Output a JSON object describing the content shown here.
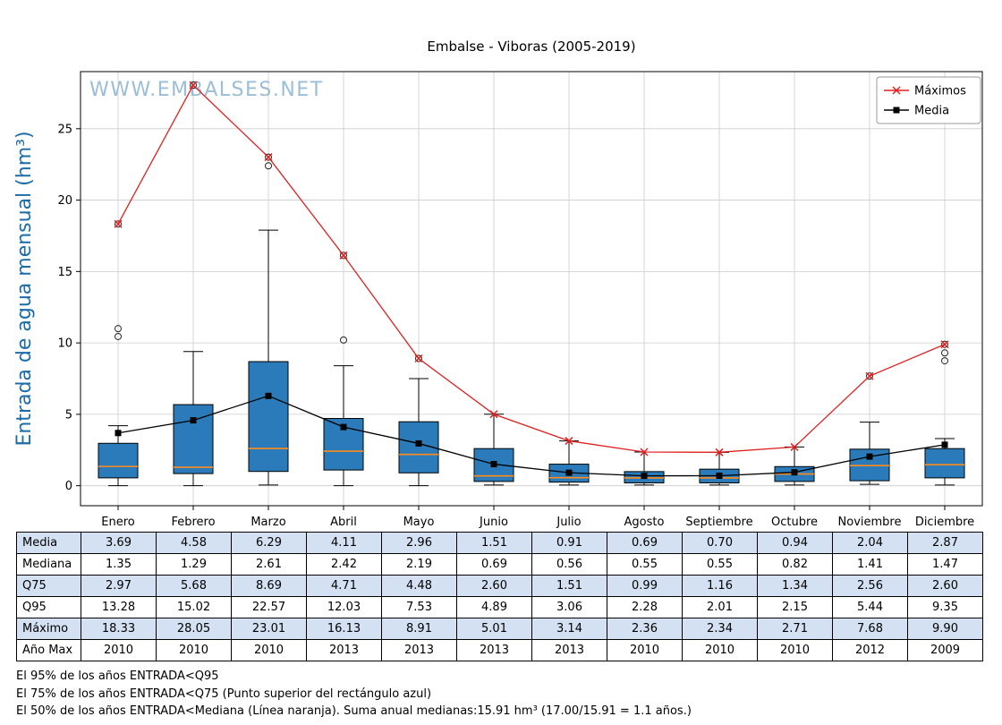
{
  "title": "Embalse - Viboras (2005-2019)",
  "watermark": "WWW.EMBALSES.NET",
  "colors": {
    "box_fill": "#2b7bba",
    "median": "#ff8c1a",
    "max_line": "#e02020",
    "media_line": "#000000",
    "ylabel": "#1b6ca8",
    "watermark": "#93b8d4",
    "grid": "#cccccc",
    "table_stripe": "#d3e1f3"
  },
  "chart_data": {
    "type": "boxplot",
    "title": "Embalse - Viboras (2005-2019)",
    "ylabel": "Entrada de agua mensual (hm³)",
    "categories": [
      "Enero",
      "Febrero",
      "Marzo",
      "Abril",
      "Mayo",
      "Junio",
      "Julio",
      "Agosto",
      "Septiembre",
      "Octubre",
      "Noviembre",
      "Diciembre"
    ],
    "yticks": [
      0,
      5,
      10,
      15,
      20,
      25
    ],
    "ylim": [
      -1.4,
      29.0
    ],
    "grid": true,
    "legend_position": "upper right",
    "boxes": [
      {
        "q1": 0.55,
        "median": 1.35,
        "q3": 2.97,
        "whisker_low": 0.0,
        "whisker_high": 4.2,
        "outliers": [
          10.45,
          11.0,
          18.33
        ]
      },
      {
        "q1": 0.85,
        "median": 1.29,
        "q3": 5.68,
        "whisker_low": 0.0,
        "whisker_high": 9.4,
        "outliers": [
          28.05
        ]
      },
      {
        "q1": 1.0,
        "median": 2.61,
        "q3": 8.69,
        "whisker_low": 0.05,
        "whisker_high": 17.9,
        "outliers": [
          22.4,
          23.01
        ]
      },
      {
        "q1": 1.1,
        "median": 2.42,
        "q3": 4.71,
        "whisker_low": 0.0,
        "whisker_high": 8.4,
        "outliers": [
          10.2,
          16.13
        ]
      },
      {
        "q1": 0.9,
        "median": 2.19,
        "q3": 4.48,
        "whisker_low": 0.0,
        "whisker_high": 7.5,
        "outliers": [
          8.91
        ]
      },
      {
        "q1": 0.3,
        "median": 0.69,
        "q3": 2.6,
        "whisker_low": 0.05,
        "whisker_high": 5.01,
        "outliers": []
      },
      {
        "q1": 0.25,
        "median": 0.56,
        "q3": 1.51,
        "whisker_low": 0.05,
        "whisker_high": 3.14,
        "outliers": []
      },
      {
        "q1": 0.2,
        "median": 0.55,
        "q3": 0.99,
        "whisker_low": 0.05,
        "whisker_high": 2.36,
        "outliers": []
      },
      {
        "q1": 0.2,
        "median": 0.55,
        "q3": 1.16,
        "whisker_low": 0.05,
        "whisker_high": 2.34,
        "outliers": []
      },
      {
        "q1": 0.3,
        "median": 0.82,
        "q3": 1.34,
        "whisker_low": 0.05,
        "whisker_high": 2.71,
        "outliers": []
      },
      {
        "q1": 0.35,
        "median": 1.41,
        "q3": 2.56,
        "whisker_low": 0.1,
        "whisker_high": 4.45,
        "outliers": [
          7.68
        ]
      },
      {
        "q1": 0.55,
        "median": 1.47,
        "q3": 2.6,
        "whisker_low": 0.05,
        "whisker_high": 3.3,
        "outliers": [
          8.75,
          9.3,
          9.9
        ]
      }
    ],
    "series": [
      {
        "name": "Máximos",
        "marker": "x",
        "color": "#e02020",
        "values": [
          18.33,
          28.05,
          23.01,
          16.13,
          8.91,
          5.01,
          3.14,
          2.36,
          2.34,
          2.71,
          7.68,
          9.9
        ]
      },
      {
        "name": "Media",
        "marker": "square",
        "color": "#000000",
        "values": [
          3.69,
          4.58,
          6.29,
          4.11,
          2.96,
          1.51,
          0.91,
          0.69,
          0.7,
          0.94,
          2.04,
          2.87
        ]
      }
    ]
  },
  "table": {
    "row_labels": [
      "Media",
      "Mediana",
      "Q75",
      "Q95",
      "Máximo",
      "Año Max"
    ],
    "rows": [
      [
        "3.69",
        "4.58",
        "6.29",
        "4.11",
        "2.96",
        "1.51",
        "0.91",
        "0.69",
        "0.70",
        "0.94",
        "2.04",
        "2.87"
      ],
      [
        "1.35",
        "1.29",
        "2.61",
        "2.42",
        "2.19",
        "0.69",
        "0.56",
        "0.55",
        "0.55",
        "0.82",
        "1.41",
        "1.47"
      ],
      [
        "2.97",
        "5.68",
        "8.69",
        "4.71",
        "4.48",
        "2.60",
        "1.51",
        "0.99",
        "1.16",
        "1.34",
        "2.56",
        "2.60"
      ],
      [
        "13.28",
        "15.02",
        "22.57",
        "12.03",
        "7.53",
        "4.89",
        "3.06",
        "2.28",
        "2.01",
        "2.15",
        "5.44",
        "9.35"
      ],
      [
        "18.33",
        "28.05",
        "23.01",
        "16.13",
        "8.91",
        "5.01",
        "3.14",
        "2.36",
        "2.34",
        "2.71",
        "7.68",
        "9.90"
      ],
      [
        "2010",
        "2010",
        "2010",
        "2013",
        "2013",
        "2013",
        "2013",
        "2010",
        "2010",
        "2010",
        "2012",
        "2009"
      ]
    ]
  },
  "footnotes": [
    "El 95% de los años ENTRADA<Q95",
    "El 75% de los años ENTRADA<Q75 (Punto superior del rectángulo azul)",
    "El 50% de los años ENTRADA<Mediana (Línea naranja). Suma anual medianas:15.91 hm³ (17.00/15.91 = 1.1 años.)"
  ]
}
